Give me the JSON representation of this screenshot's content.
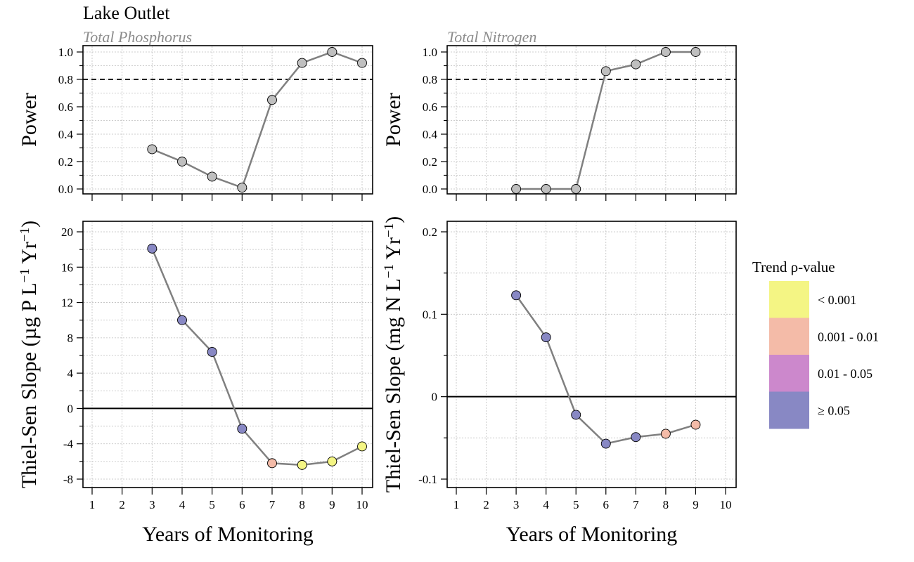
{
  "title": "Lake Outlet",
  "xlabel": "Years of Monitoring",
  "power_ylabel": "Power",
  "power_ref": 0.8,
  "colors": {
    "power_point": "#bfbfbf",
    "line": "#808080",
    "p_lt_0_001": "#f4f584",
    "p_0_001_0_01": "#f4bba8",
    "p_0_01_0_05": "#cc88cc",
    "p_ge_0_05": "#8888c4"
  },
  "legend": {
    "title": "Trend ρ-value",
    "entries": [
      {
        "key": "lt_0_001",
        "label": "< 0.001",
        "color": "#f4f584"
      },
      {
        "key": "0_001_0_01",
        "label": "0.001 - 0.01",
        "color": "#f4bba8"
      },
      {
        "key": "0_01_0_05",
        "label": "0.01 - 0.05",
        "color": "#cc88cc"
      },
      {
        "key": "ge_0_05",
        "label": "≥ 0.05",
        "color": "#8888c4"
      }
    ]
  },
  "chart_data": [
    {
      "type": "line",
      "subtitle": "Total Phosphorus",
      "ylabel": "Power",
      "xlim": [
        1,
        10
      ],
      "ylim": [
        0,
        1
      ],
      "x_ticks": [
        1,
        2,
        3,
        4,
        5,
        6,
        7,
        8,
        9,
        10
      ],
      "y_ticks": [
        "0.0",
        "0.2",
        "0.4",
        "0.6",
        "0.8",
        "1.0"
      ],
      "reference_line": 0.8,
      "x": [
        3,
        4,
        5,
        6,
        7,
        8,
        9,
        10
      ],
      "values": [
        0.29,
        0.2,
        0.09,
        0.01,
        0.65,
        0.92,
        1.0,
        0.92
      ]
    },
    {
      "type": "line",
      "subtitle": "Total Nitrogen",
      "ylabel": "Power",
      "xlim": [
        1,
        10
      ],
      "ylim": [
        0,
        1
      ],
      "x_ticks": [
        1,
        2,
        3,
        4,
        5,
        6,
        7,
        8,
        9,
        10
      ],
      "y_ticks": [
        "0.0",
        "0.2",
        "0.4",
        "0.6",
        "0.8",
        "1.0"
      ],
      "reference_line": 0.8,
      "x": [
        3,
        4,
        5,
        6,
        7,
        8,
        9
      ],
      "values": [
        0.0,
        0.0,
        0.0,
        0.86,
        0.91,
        1.0,
        1.0
      ]
    },
    {
      "type": "line",
      "ylabel_main": "Thiel-Sen Slope (µg P L",
      "ylabel_sup1": "−1",
      "ylabel_mid": " Yr",
      "ylabel_sup2": "−1",
      "ylabel_end": ")",
      "xlim": [
        1,
        10
      ],
      "ylim": [
        -8,
        20
      ],
      "x_ticks": [
        1,
        2,
        3,
        4,
        5,
        6,
        7,
        8,
        9,
        10
      ],
      "y_ticks": [
        "-8",
        "-4",
        "0",
        "4",
        "8",
        "12",
        "16",
        "20"
      ],
      "y_tick_values": [
        -8,
        -4,
        0,
        4,
        8,
        12,
        16,
        20
      ],
      "reference_line": 0,
      "x": [
        3,
        4,
        5,
        6,
        7,
        8,
        9,
        10
      ],
      "values": [
        18.1,
        10.0,
        6.4,
        -2.3,
        -6.2,
        -6.4,
        -6.0,
        -4.3
      ],
      "p_class": [
        "ge_0_05",
        "ge_0_05",
        "ge_0_05",
        "ge_0_05",
        "0_001_0_01",
        "lt_0_001",
        "lt_0_001",
        "lt_0_001"
      ]
    },
    {
      "type": "line",
      "ylabel_main": "Thiel-Sen Slope (mg N L",
      "ylabel_sup1": "−1",
      "ylabel_mid": " Yr",
      "ylabel_sup2": "−1",
      "ylabel_end": ")",
      "xlim": [
        1,
        10
      ],
      "ylim": [
        -0.1,
        0.2
      ],
      "x_ticks": [
        1,
        2,
        3,
        4,
        5,
        6,
        7,
        8,
        9,
        10
      ],
      "y_ticks": [
        "-0.1",
        "0",
        "0.1",
        "0.2"
      ],
      "y_tick_values": [
        -0.1,
        0,
        0.1,
        0.2
      ],
      "reference_line": 0,
      "x": [
        3,
        4,
        5,
        6,
        7,
        8,
        9
      ],
      "values": [
        0.123,
        0.072,
        -0.022,
        -0.057,
        -0.049,
        -0.045,
        -0.034
      ],
      "p_class": [
        "ge_0_05",
        "ge_0_05",
        "ge_0_05",
        "ge_0_05",
        "ge_0_05",
        "0_001_0_01",
        "0_001_0_01"
      ]
    }
  ]
}
